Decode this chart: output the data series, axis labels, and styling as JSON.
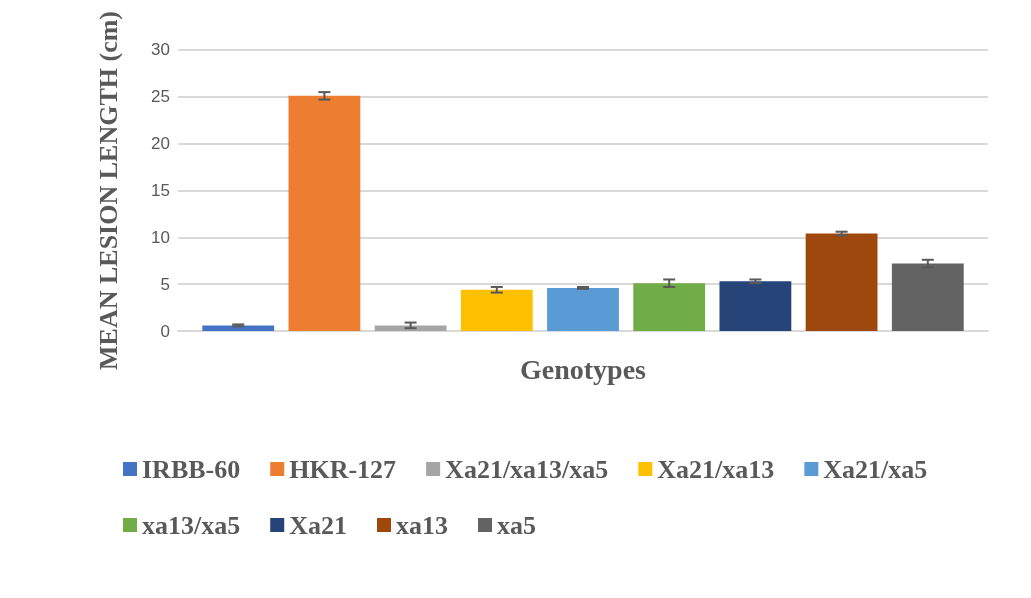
{
  "chart_data": {
    "type": "bar",
    "xlabel": "Genotypes",
    "ylabel": "MEAN LESION LENGTH (cm)",
    "categories": [
      null
    ],
    "series": [
      {
        "name": "IRBB-60",
        "color": "#4472c4",
        "values": [
          0.6
        ],
        "errors": [
          0.1
        ]
      },
      {
        "name": "HKR-127",
        "color": "#ed7d31",
        "values": [
          25.1
        ],
        "errors": [
          0.4
        ]
      },
      {
        "name": "Xa21/xa13/xa5",
        "color": "#a5a5a5",
        "values": [
          0.6
        ],
        "errors": [
          0.3
        ]
      },
      {
        "name": "Xa21/xa13",
        "color": "#ffc000",
        "values": [
          4.4
        ],
        "errors": [
          0.3
        ]
      },
      {
        "name": "Xa21/xa5",
        "color": "#5b9bd5",
        "values": [
          4.6
        ],
        "errors": [
          0.1
        ]
      },
      {
        "name": "xa13/xa5",
        "color": "#70ad47",
        "values": [
          5.1
        ],
        "errors": [
          0.4
        ]
      },
      {
        "name": "Xa21",
        "color": "#264478",
        "values": [
          5.3
        ],
        "errors": [
          0.2
        ]
      },
      {
        "name": "xa13",
        "color": "#9e480e",
        "values": [
          10.4
        ],
        "errors": [
          0.2
        ]
      },
      {
        "name": "xa5",
        "color": "#636363",
        "values": [
          7.2
        ],
        "errors": [
          0.4
        ]
      }
    ],
    "ylim": [
      0,
      30
    ],
    "yticks": [
      0,
      5,
      10,
      15,
      20,
      25,
      30
    ],
    "grid": "y",
    "legend": "bottom"
  }
}
